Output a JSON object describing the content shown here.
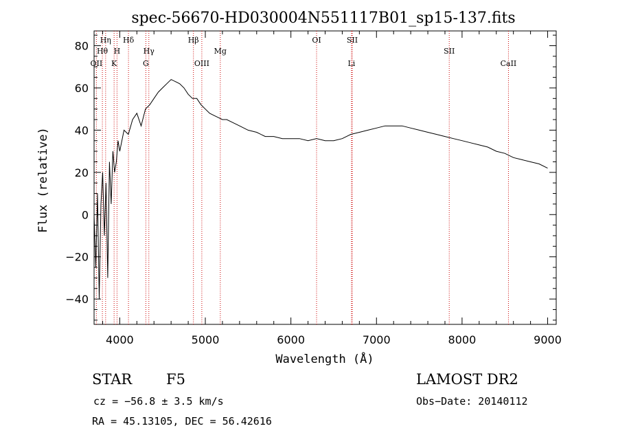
{
  "chart_data": {
    "type": "line",
    "title": "spec-56670-HD030004N551117B01_sp15-137.fits",
    "xlabel": "Wavelength (Å)",
    "ylabel": "Flux (relative)",
    "xlim": [
      3700,
      9100
    ],
    "ylim": [
      -52,
      87
    ],
    "xticks": [
      4000,
      5000,
      6000,
      7000,
      8000,
      9000
    ],
    "yticks": [
      -40,
      -20,
      0,
      20,
      40,
      60,
      80
    ],
    "grid": false,
    "line_color": "#000000",
    "marker_color": "#cc0000",
    "series": [
      {
        "x": [
          3700,
          3720,
          3740,
          3760,
          3780,
          3800,
          3820,
          3840,
          3860,
          3880,
          3900,
          3920,
          3940,
          3960,
          3980,
          4000,
          4050,
          4100,
          4150,
          4200,
          4250,
          4300,
          4350,
          4400,
          4450,
          4500,
          4550,
          4600,
          4650,
          4700,
          4750,
          4800,
          4850,
          4900,
          4950,
          5000,
          5050,
          5100,
          5150,
          5200,
          5250,
          5300,
          5400,
          5500,
          5600,
          5700,
          5800,
          5900,
          6000,
          6100,
          6200,
          6300,
          6400,
          6500,
          6600,
          6700,
          6800,
          6900,
          7000,
          7100,
          7200,
          7300,
          7400,
          7500,
          7600,
          7700,
          7800,
          7900,
          8000,
          8100,
          8200,
          8300,
          8400,
          8500,
          8600,
          8700,
          8800,
          8900,
          9000
        ],
        "y": [
          0,
          -25,
          10,
          -40,
          5,
          20,
          -10,
          15,
          -30,
          25,
          5,
          30,
          20,
          25,
          35,
          30,
          40,
          38,
          45,
          48,
          42,
          50,
          52,
          55,
          58,
          60,
          62,
          64,
          63,
          62,
          60,
          57,
          55,
          55,
          52,
          50,
          48,
          47,
          46,
          45,
          45,
          44,
          42,
          40,
          39,
          37,
          37,
          36,
          36,
          36,
          35,
          36,
          35,
          35,
          36,
          38,
          39,
          40,
          41,
          42,
          42,
          42,
          41,
          40,
          39,
          38,
          37,
          36,
          35,
          34,
          33,
          32,
          30,
          29,
          27,
          26,
          25,
          24,
          22
        ]
      }
    ],
    "annotations": {
      "stats_flux_peak_hint": "",
      "line_markers": [
        {
          "label": "Hη",
          "x": 3835,
          "row": 0
        },
        {
          "label": "Hθ",
          "x": 3797,
          "row": 1
        },
        {
          "label": "OII",
          "x": 3727,
          "row": 2
        },
        {
          "label": "Hδ",
          "x": 4102,
          "row": 0
        },
        {
          "label": "H",
          "x": 3968,
          "row": 1
        },
        {
          "label": "K",
          "x": 3934,
          "row": 2
        },
        {
          "label": "Hγ",
          "x": 4340,
          "row": 1
        },
        {
          "label": "G",
          "x": 4305,
          "row": 2
        },
        {
          "label": "Hβ",
          "x": 4861,
          "row": 0
        },
        {
          "label": "OIII",
          "x": 4959,
          "row": 2
        },
        {
          "label": "Mg",
          "x": 5175,
          "row": 1
        },
        {
          "label": "OI",
          "x": 6300,
          "row": 0
        },
        {
          "label": "SII",
          "x": 6717,
          "row": 0
        },
        {
          "label": "Li",
          "x": 6708,
          "row": 2
        },
        {
          "label": "SII",
          "x": 7850,
          "row": 1
        },
        {
          "label": "CaII",
          "x": 8542,
          "row": 2
        }
      ]
    }
  },
  "info": {
    "object_class": "STAR",
    "subclass": "F5",
    "survey": "LAMOST DR2",
    "cz": "cz = −56.8 ± 3.5 km/s",
    "obs_date": "Obs−Date: 20140112",
    "coords": "RA =  45.13105, DEC =  56.42616"
  }
}
